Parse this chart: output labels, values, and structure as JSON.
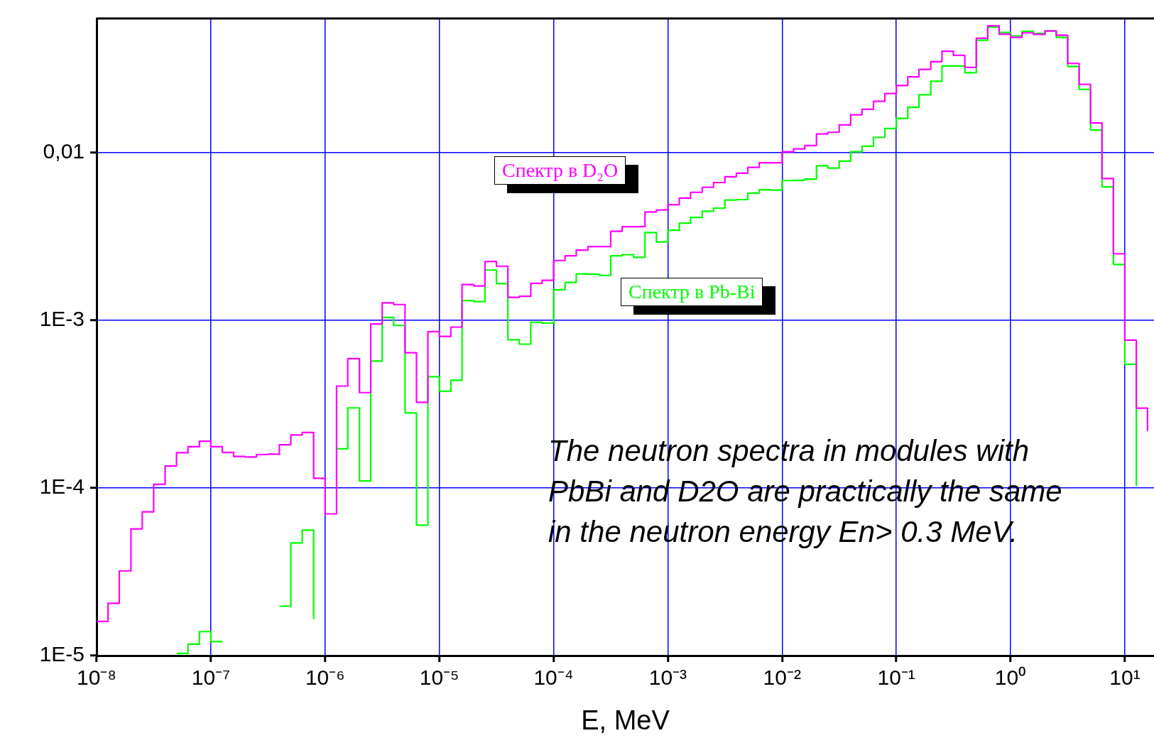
{
  "chart_data": {
    "type": "step",
    "xlabel": "E, MeV",
    "annotations": [
      "The neutron spectra in modules with PbBi and D2O are practically the same in the neutron energy En> 0.3 MeV."
    ],
    "x": [
      1e-08,
      1.26e-08,
      1.58e-08,
      2e-08,
      2.51e-08,
      3.16e-08,
      3.98e-08,
      5.01e-08,
      6.31e-08,
      7.94e-08,
      1e-07,
      1.26e-07,
      1.58e-07,
      2e-07,
      2.51e-07,
      3.16e-07,
      3.98e-07,
      5.01e-07,
      6.31e-07,
      7.94e-07,
      1e-06,
      1.26e-06,
      1.58e-06,
      2e-06,
      2.51e-06,
      3.16e-06,
      3.98e-06,
      5.01e-06,
      6.31e-06,
      7.94e-06,
      1e-05,
      1.26e-05,
      1.58e-05,
      2e-05,
      2.51e-05,
      3.16e-05,
      3.98e-05,
      5.01e-05,
      6.31e-05,
      7.94e-05,
      0.0001,
      0.000126,
      0.000158,
      0.0002,
      0.000251,
      0.000316,
      0.000398,
      0.000501,
      0.000631,
      0.000794,
      0.001,
      0.00126,
      0.00158,
      0.002,
      0.00251,
      0.00316,
      0.00398,
      0.00501,
      0.00631,
      0.00794,
      0.01,
      0.0126,
      0.0158,
      0.02,
      0.0251,
      0.0316,
      0.0398,
      0.0501,
      0.0631,
      0.0794,
      0.1,
      0.126,
      0.158,
      0.2,
      0.251,
      0.316,
      0.398,
      0.501,
      0.631,
      0.794,
      1,
      1.26,
      1.58,
      2,
      2.51,
      3.16,
      3.98,
      5.01,
      6.31,
      7.94,
      10,
      12.6,
      15.8
    ],
    "series": [
      {
        "name": "Спектр в D₂O",
        "color": "#ff00ff",
        "values": [
          1.6e-05,
          2.05e-05,
          3.2e-05,
          5.7e-05,
          7.2e-05,
          0.000105,
          0.000135,
          0.000162,
          0.000176,
          0.00019,
          0.000176,
          0.000163,
          0.000154,
          0.000153,
          0.000158,
          0.000159,
          0.000181,
          0.000207,
          0.000214,
          0.000114,
          7e-05,
          0.000405,
          0.00059,
          0.00037,
          0.00095,
          0.00127,
          0.00124,
          0.00064,
          0.000324,
          0.000855,
          0.0008,
          0.00091,
          0.00163,
          0.0016,
          0.00224,
          0.0021,
          0.00137,
          0.00139,
          0.00166,
          0.00173,
          0.00227,
          0.00242,
          0.00262,
          0.00275,
          0.00275,
          0.00339,
          0.00361,
          0.00361,
          0.00442,
          0.00454,
          0.00489,
          0.00535,
          0.00579,
          0.0062,
          0.00662,
          0.00717,
          0.00752,
          0.00815,
          0.00869,
          0.00869,
          0.0101,
          0.0105,
          0.011,
          0.0129,
          0.0132,
          0.0146,
          0.0168,
          0.0181,
          0.0202,
          0.0225,
          0.0251,
          0.0283,
          0.0313,
          0.0348,
          0.0402,
          0.038,
          0.0322,
          0.048,
          0.0569,
          0.0508,
          0.0486,
          0.0517,
          0.0506,
          0.0531,
          0.05,
          0.034,
          0.0255,
          0.015,
          0.00699,
          0.00249,
          0.00076,
          0.000299,
          0.000218
        ]
      },
      {
        "name": "Спектр в Pb-Bi",
        "color": "#00ff00",
        "values": [
          null,
          null,
          null,
          null,
          null,
          null,
          null,
          1.03e-05,
          1.17e-05,
          1.39e-05,
          1.21e-05,
          1.2e-05,
          null,
          null,
          null,
          null,
          1.97e-05,
          4.7e-05,
          5.6e-05,
          1.65e-05,
          null,
          0.000171,
          0.0003,
          0.00011,
          0.00057,
          0.00104,
          0.00093,
          0.00028,
          6e-05,
          0.00046,
          0.000377,
          0.000438,
          0.00131,
          0.00129,
          0.00199,
          0.00165,
          0.000765,
          0.00072,
          0.00097,
          0.00096,
          0.00152,
          0.00168,
          0.00189,
          0.00188,
          0.00185,
          0.00242,
          0.00246,
          0.00237,
          0.00333,
          0.00293,
          0.00344,
          0.00379,
          0.0041,
          0.00447,
          0.00466,
          0.00521,
          0.00524,
          0.00573,
          0.006,
          0.00597,
          0.0068,
          0.00683,
          0.00695,
          0.00834,
          0.00807,
          0.00889,
          0.0101,
          0.0109,
          0.0123,
          0.0139,
          0.016,
          0.0186,
          0.0221,
          0.0266,
          0.0328,
          0.0328,
          0.0299,
          0.0467,
          0.056,
          0.052,
          0.0496,
          0.0528,
          0.0513,
          0.0531,
          0.0486,
          0.0326,
          0.0238,
          0.0136,
          0.00624,
          0.00215,
          0.000546,
          0.000103,
          null
        ]
      }
    ],
    "xlim": [
      1e-08,
      18
    ],
    "ylim": [
      1e-05,
      0.063
    ],
    "xticks": [
      {
        "value": 1e-08,
        "label": "10⁻⁸"
      },
      {
        "value": 1e-07,
        "label": "10⁻⁷"
      },
      {
        "value": 1e-06,
        "label": "10⁻⁶"
      },
      {
        "value": 1e-05,
        "label": "10⁻⁵"
      },
      {
        "value": 0.0001,
        "label": "10⁻⁴"
      },
      {
        "value": 0.001,
        "label": "10⁻³"
      },
      {
        "value": 0.01,
        "label": "10⁻²"
      },
      {
        "value": 0.1,
        "label": "10⁻¹"
      },
      {
        "value": 1,
        "label": "10⁰"
      },
      {
        "value": 10,
        "label": "10¹"
      }
    ],
    "yticks": [
      {
        "value": 1e-05,
        "label": "1E-5"
      },
      {
        "value": 0.0001,
        "label": "1E-4"
      },
      {
        "value": 0.001,
        "label": "1E-3"
      },
      {
        "value": 0.01,
        "label": "0,01"
      }
    ],
    "log": "xy",
    "grid": true
  }
}
